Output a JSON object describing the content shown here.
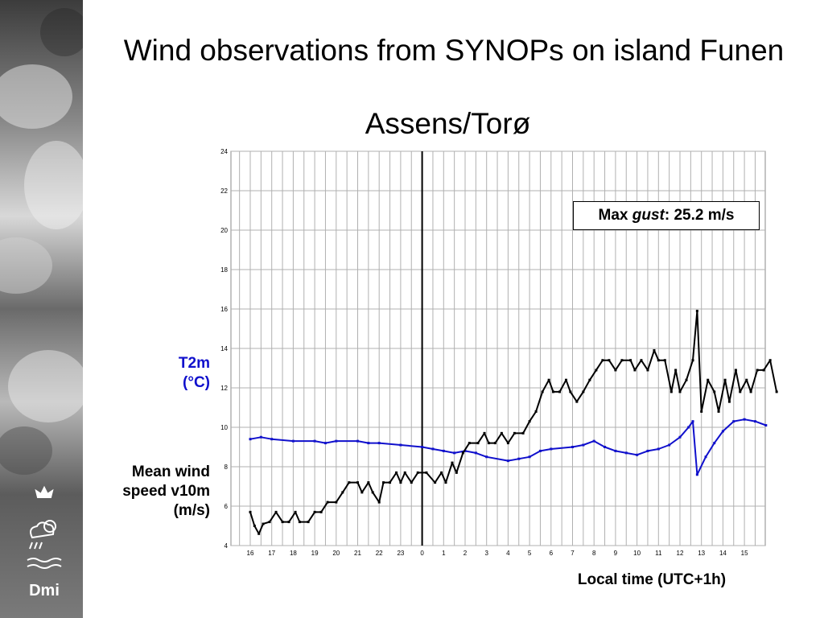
{
  "slide": {
    "title": "Wind observations from SYNOPs on island Funen",
    "subtitle": "Assens/Torø",
    "t2m_label_line1": "T2m",
    "t2m_label_line2": "(°C)",
    "wind_label_line1": "Mean wind",
    "wind_label_line2": "speed v10m",
    "wind_label_line3": "(m/s)",
    "xaxis_title": "Local time (UTC+1h)",
    "logo_text": "Dmi"
  },
  "annotation": {
    "prefix": "Max ",
    "italic": "gust",
    "suffix": ": 25.2 m/s"
  },
  "colors": {
    "wind_series": "#000000",
    "t2m_series": "#1010cc",
    "t2m_label": "#1010cc",
    "grid": "#b0b0b0"
  },
  "chart_data": {
    "type": "line",
    "ylim": [
      4,
      24
    ],
    "yticks": [
      "4",
      "6",
      "8",
      "10",
      "12",
      "14",
      "16",
      "18",
      "20",
      "22",
      "24"
    ],
    "xticks": [
      "16",
      "17",
      "18",
      "19",
      "20",
      "21",
      "22",
      "23",
      "0",
      "1",
      "2",
      "3",
      "4",
      "5",
      "6",
      "7",
      "8",
      "9",
      "10",
      "11",
      "12",
      "13",
      "14",
      "15"
    ],
    "x_range_hours": [
      -8.5,
      16
    ],
    "midnight_marker": 0,
    "grid": true,
    "series": [
      {
        "key": "t2m",
        "points": [
          [
            -8,
            9.4
          ],
          [
            -7.5,
            9.5
          ],
          [
            -7,
            9.4
          ],
          [
            -6,
            9.3
          ],
          [
            -5,
            9.3
          ],
          [
            -4.5,
            9.2
          ],
          [
            -4,
            9.3
          ],
          [
            -3,
            9.3
          ],
          [
            -2.5,
            9.2
          ],
          [
            -2,
            9.2
          ],
          [
            -1,
            9.1
          ],
          [
            0,
            9.0
          ],
          [
            0.5,
            8.9
          ],
          [
            1,
            8.8
          ],
          [
            1.5,
            8.7
          ],
          [
            2,
            8.8
          ],
          [
            2.5,
            8.7
          ],
          [
            3,
            8.5
          ],
          [
            4,
            8.3
          ],
          [
            4.5,
            8.4
          ],
          [
            5,
            8.5
          ],
          [
            5.5,
            8.8
          ],
          [
            6,
            8.9
          ],
          [
            7,
            9.0
          ],
          [
            7.5,
            9.1
          ],
          [
            8,
            9.3
          ],
          [
            8.5,
            9.0
          ],
          [
            9,
            8.8
          ],
          [
            9.5,
            8.7
          ],
          [
            10,
            8.6
          ],
          [
            10.5,
            8.8
          ],
          [
            11,
            8.9
          ],
          [
            11.5,
            9.1
          ],
          [
            12,
            9.5
          ],
          [
            12.4,
            10.0
          ],
          [
            12.6,
            10.3
          ],
          [
            12.8,
            7.6
          ],
          [
            13.2,
            8.5
          ],
          [
            13.6,
            9.2
          ],
          [
            14,
            9.8
          ],
          [
            14.5,
            10.3
          ],
          [
            15,
            10.4
          ],
          [
            15.5,
            10.3
          ],
          [
            16,
            10.1
          ]
        ]
      },
      {
        "key": "wind",
        "points": [
          [
            -8,
            5.7
          ],
          [
            -7.8,
            5.0
          ],
          [
            -7.6,
            4.6
          ],
          [
            -7.4,
            5.1
          ],
          [
            -7.1,
            5.2
          ],
          [
            -6.8,
            5.7
          ],
          [
            -6.5,
            5.2
          ],
          [
            -6.2,
            5.2
          ],
          [
            -5.9,
            5.7
          ],
          [
            -5.7,
            5.2
          ],
          [
            -5.3,
            5.2
          ],
          [
            -5.0,
            5.7
          ],
          [
            -4.7,
            5.7
          ],
          [
            -4.4,
            6.2
          ],
          [
            -4.0,
            6.2
          ],
          [
            -3.7,
            6.7
          ],
          [
            -3.4,
            7.2
          ],
          [
            -3.0,
            7.2
          ],
          [
            -2.8,
            6.7
          ],
          [
            -2.5,
            7.2
          ],
          [
            -2.3,
            6.7
          ],
          [
            -2.0,
            6.2
          ],
          [
            -1.8,
            7.2
          ],
          [
            -1.5,
            7.2
          ],
          [
            -1.2,
            7.7
          ],
          [
            -1.0,
            7.2
          ],
          [
            -0.8,
            7.7
          ],
          [
            -0.5,
            7.2
          ],
          [
            -0.2,
            7.7
          ],
          [
            0.2,
            7.7
          ],
          [
            0.6,
            7.2
          ],
          [
            0.9,
            7.7
          ],
          [
            1.1,
            7.2
          ],
          [
            1.4,
            8.2
          ],
          [
            1.6,
            7.7
          ],
          [
            1.9,
            8.7
          ],
          [
            2.2,
            9.2
          ],
          [
            2.6,
            9.2
          ],
          [
            2.9,
            9.7
          ],
          [
            3.1,
            9.2
          ],
          [
            3.4,
            9.2
          ],
          [
            3.7,
            9.7
          ],
          [
            4.0,
            9.2
          ],
          [
            4.3,
            9.7
          ],
          [
            4.7,
            9.7
          ],
          [
            5.0,
            10.3
          ],
          [
            5.3,
            10.8
          ],
          [
            5.6,
            11.8
          ],
          [
            5.9,
            12.4
          ],
          [
            6.1,
            11.8
          ],
          [
            6.4,
            11.8
          ],
          [
            6.7,
            12.4
          ],
          [
            6.9,
            11.8
          ],
          [
            7.2,
            11.3
          ],
          [
            7.5,
            11.8
          ],
          [
            7.8,
            12.4
          ],
          [
            8.1,
            12.9
          ],
          [
            8.4,
            13.4
          ],
          [
            8.7,
            13.4
          ],
          [
            9.0,
            12.9
          ],
          [
            9.3,
            13.4
          ],
          [
            9.7,
            13.4
          ],
          [
            9.9,
            12.9
          ],
          [
            10.2,
            13.4
          ],
          [
            10.5,
            12.9
          ],
          [
            10.8,
            13.9
          ],
          [
            11.0,
            13.4
          ],
          [
            11.3,
            13.4
          ],
          [
            11.6,
            11.8
          ],
          [
            11.8,
            12.9
          ],
          [
            12.0,
            11.8
          ],
          [
            12.3,
            12.4
          ],
          [
            12.6,
            13.4
          ],
          [
            12.8,
            15.9
          ],
          [
            13.0,
            10.8
          ],
          [
            13.3,
            12.4
          ],
          [
            13.6,
            11.8
          ],
          [
            13.8,
            10.8
          ],
          [
            14.1,
            12.4
          ],
          [
            14.3,
            11.3
          ],
          [
            14.6,
            12.9
          ],
          [
            14.8,
            11.8
          ],
          [
            15.1,
            12.4
          ],
          [
            15.3,
            11.8
          ],
          [
            15.6,
            12.9
          ],
          [
            15.9,
            12.9
          ],
          [
            16.2,
            13.4
          ],
          [
            16.5,
            11.8
          ]
        ]
      }
    ]
  }
}
